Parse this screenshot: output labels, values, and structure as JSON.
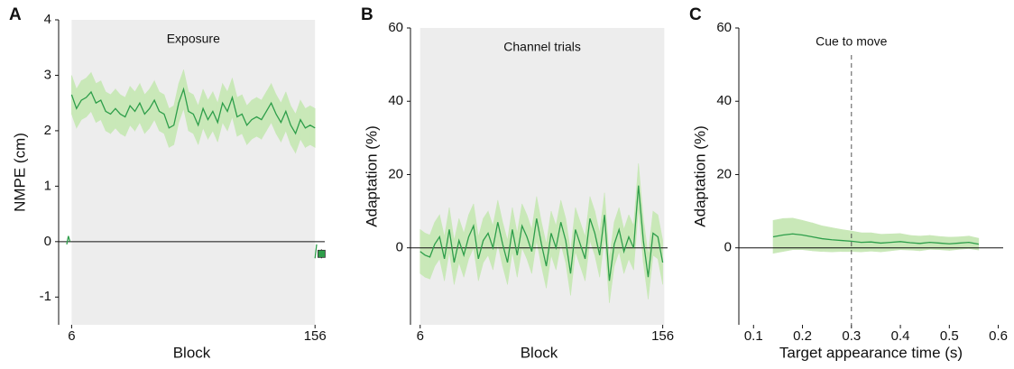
{
  "chart_data": [
    {
      "type": "line",
      "panel_label": "A",
      "annotation": "Exposure",
      "x_label": "Block",
      "y_label": "NMPE (cm)",
      "xlim": [
        -2,
        162
      ],
      "xticks": [
        6,
        156
      ],
      "ylim": [
        -1.5,
        4
      ],
      "yticks": [
        -1,
        0,
        1,
        2,
        3,
        4
      ],
      "shade": [
        6,
        156
      ],
      "hline": 0,
      "band_color": "#c9e8b8",
      "shade_color": "#ededed",
      "series": [
        {
          "color": "#2e9e4a",
          "error": 0.35,
          "x": [
            6,
            9,
            12,
            15,
            18,
            21,
            24,
            27,
            30,
            33,
            36,
            39,
            42,
            45,
            48,
            51,
            54,
            57,
            60,
            63,
            66,
            69,
            72,
            75,
            78,
            81,
            84,
            87,
            90,
            93,
            96,
            99,
            102,
            105,
            108,
            111,
            114,
            117,
            120,
            123,
            126,
            129,
            132,
            135,
            138,
            141,
            144,
            147,
            150,
            153,
            156
          ],
          "values": [
            2.65,
            2.4,
            2.55,
            2.6,
            2.7,
            2.5,
            2.55,
            2.35,
            2.3,
            2.4,
            2.3,
            2.25,
            2.45,
            2.35,
            2.5,
            2.3,
            2.4,
            2.55,
            2.35,
            2.3,
            2.05,
            2.1,
            2.5,
            2.75,
            2.35,
            2.3,
            2.1,
            2.4,
            2.2,
            2.35,
            2.15,
            2.5,
            2.35,
            2.6,
            2.25,
            2.3,
            2.1,
            2.2,
            2.25,
            2.2,
            2.35,
            2.5,
            2.3,
            2.15,
            2.35,
            2.1,
            1.95,
            2.2,
            2.05,
            2.1,
            2.05
          ]
        },
        {
          "color": "#2e9e4a",
          "x": [
            3,
            4,
            5
          ],
          "values": [
            -0.05,
            0.1,
            0
          ]
        },
        {
          "color": "#2e9e4a",
          "x": [
            156,
            157
          ],
          "values": [
            -0.3,
            -0.05
          ]
        },
        {
          "color": "#2e9e4a",
          "marker": "square",
          "x": [
            160
          ],
          "values": [
            -0.22
          ],
          "error": 0.08
        }
      ]
    },
    {
      "type": "line",
      "panel_label": "B",
      "annotation": "Channel trials",
      "x_label": "Block",
      "y_label": "Adaptation (%)",
      "xlim": [
        0,
        159
      ],
      "xticks": [
        6,
        156
      ],
      "ylim": [
        -21,
        60
      ],
      "yticks": [
        0,
        20,
        40,
        60
      ],
      "shade": [
        6,
        157
      ],
      "hline": 0,
      "band_color": "#c9e8b8",
      "shade_color": "#ededed",
      "series": [
        {
          "color": "#2e9e4a",
          "error": 6,
          "x": [
            6,
            9,
            12,
            15,
            18,
            21,
            24,
            27,
            30,
            33,
            36,
            39,
            42,
            45,
            48,
            51,
            54,
            57,
            60,
            63,
            66,
            69,
            72,
            75,
            78,
            81,
            84,
            87,
            90,
            93,
            96,
            99,
            102,
            105,
            108,
            111,
            114,
            117,
            120,
            123,
            126,
            129,
            132,
            135,
            138,
            141,
            144,
            147,
            150,
            153,
            156
          ],
          "values": [
            -1,
            -2,
            -2.5,
            1,
            3,
            -3,
            5,
            -4,
            2,
            -2,
            3,
            6,
            -3,
            2,
            4,
            0,
            7,
            1,
            -4,
            5,
            -2,
            6,
            3,
            -1,
            8,
            1,
            -5,
            4,
            0,
            7,
            2,
            -7,
            5,
            1,
            -3,
            8,
            4,
            -2,
            9,
            -9,
            1,
            5,
            -1,
            3,
            0,
            17,
            2,
            -8,
            4,
            3,
            -4
          ]
        }
      ]
    },
    {
      "type": "line",
      "panel_label": "C",
      "annotation": "Cue to move",
      "x_label": "Target appearance time (s)",
      "y_label": "Adaptation (%)",
      "xlim": [
        0.07,
        0.61
      ],
      "xticks": [
        0.1,
        0.2,
        0.3,
        0.4,
        0.5,
        0.6
      ],
      "ylim": [
        -21,
        60
      ],
      "yticks": [
        0,
        20,
        40,
        60
      ],
      "hline": 0,
      "vline": 0.3,
      "band_color": "#c9e8b8",
      "series": [
        {
          "color": "#2e9e4a",
          "x": [
            0.14,
            0.16,
            0.18,
            0.2,
            0.22,
            0.24,
            0.26,
            0.28,
            0.3,
            0.32,
            0.34,
            0.36,
            0.38,
            0.4,
            0.42,
            0.44,
            0.46,
            0.48,
            0.5,
            0.52,
            0.54,
            0.56
          ],
          "values": [
            3,
            3.5,
            3.8,
            3.5,
            3,
            2.5,
            2.2,
            2,
            1.8,
            1.5,
            1.6,
            1.3,
            1.5,
            1.7,
            1.4,
            1.2,
            1.5,
            1.3,
            1.1,
            1.3,
            1.5,
            1
          ],
          "error": [
            4.5,
            4.5,
            4.3,
            4,
            3.8,
            3.5,
            3.3,
            3,
            2.8,
            2.6,
            2.5,
            2.4,
            2.3,
            2.2,
            2,
            2,
            1.9,
            1.8,
            1.8,
            1.7,
            1.7,
            1.6
          ]
        }
      ]
    }
  ]
}
